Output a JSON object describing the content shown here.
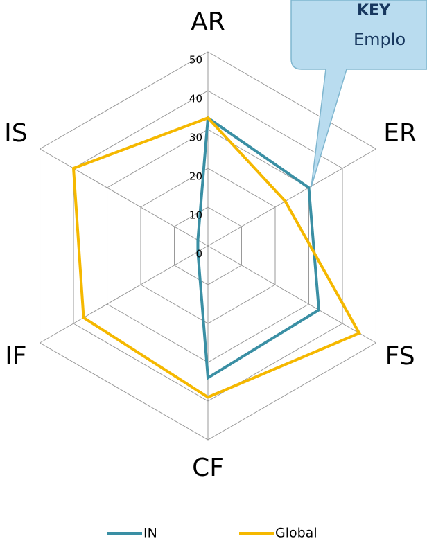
{
  "chart_data": {
    "type": "radar",
    "categories": [
      "AR",
      "ER",
      "FS",
      "CF",
      "IF",
      "IS"
    ],
    "series": [
      {
        "name": "IN",
        "color": "#3a8fa4",
        "values": [
          33,
          30,
          33,
          34,
          3,
          3
        ]
      },
      {
        "name": "Global",
        "color": "#f5b800",
        "values": [
          33,
          23,
          45,
          39,
          37,
          40
        ]
      }
    ],
    "ylim": [
      0,
      50
    ],
    "yticks": [
      0,
      10,
      20,
      30,
      40,
      50
    ],
    "grid": true,
    "callout": {
      "title": "KEY",
      "text": "Emplo"
    }
  }
}
